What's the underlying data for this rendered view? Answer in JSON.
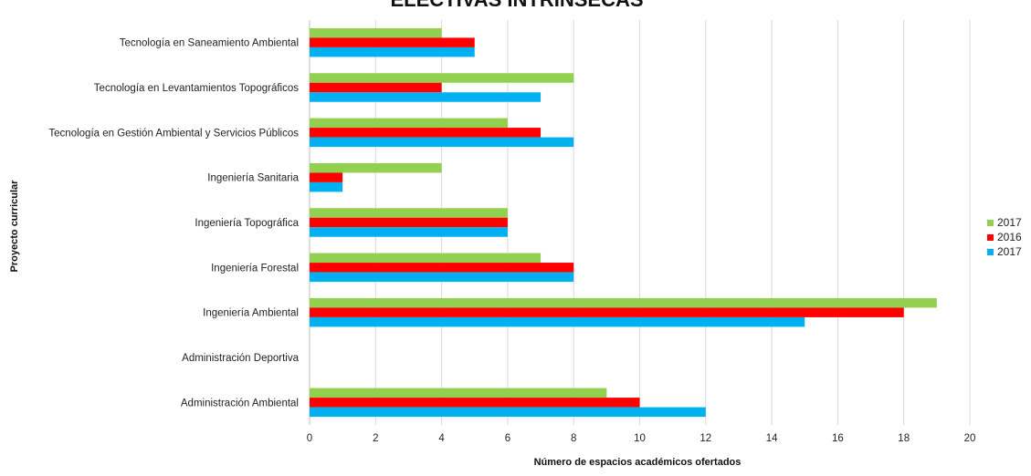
{
  "chart_data": {
    "type": "bar",
    "orientation": "horizontal",
    "title": "ELECTIVAS INTRÍNSECAS",
    "xlabel": "Número de espacios académicos ofertados",
    "ylabel": "Proyecto curricular",
    "xlim": [
      0,
      20
    ],
    "xticks": [
      0,
      2,
      4,
      6,
      8,
      10,
      12,
      14,
      16,
      18,
      20
    ],
    "grid": "vertical",
    "legend_position": "right",
    "categories": [
      "Tecnología en Saneamiento Ambiental",
      "Tecnología en Levantamientos Topográficos",
      "Tecnología en Gestión Ambiental y Servicios Públicos",
      "Ingeniería Sanitaria",
      "Ingeniería Topográfica",
      "Ingeniería Forestal",
      "Ingeniería Ambiental",
      "Administración Deportiva",
      "Administración Ambiental"
    ],
    "series": [
      {
        "name": "2017",
        "color": "#92D050",
        "values": [
          4,
          8,
          6,
          4,
          6,
          7,
          19,
          0,
          9
        ]
      },
      {
        "name": "2016",
        "color": "#FF0000",
        "values": [
          5,
          4,
          7,
          1,
          6,
          8,
          18,
          0,
          10
        ]
      },
      {
        "name": "2017",
        "color": "#00B0F0",
        "values": [
          5,
          7,
          8,
          1,
          6,
          8,
          15,
          0,
          12
        ]
      }
    ]
  }
}
